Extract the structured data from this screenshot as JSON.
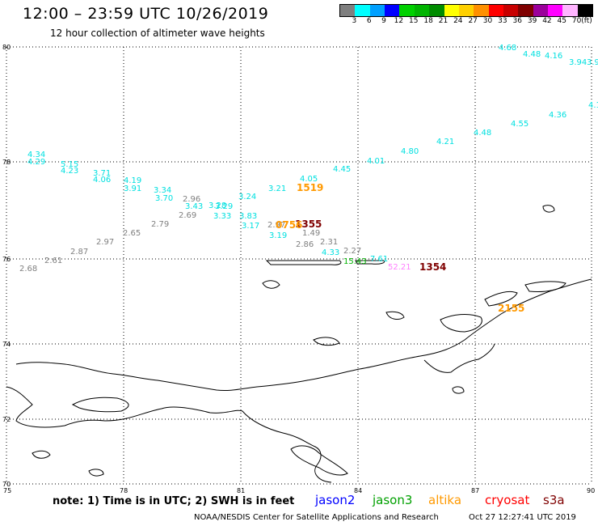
{
  "title": "12:00 – 23:59 UTC 10/26/2019",
  "subtitle": "12 hour collection of altimeter wave heights",
  "legend": {
    "colors": [
      "#7f7f7f",
      "#00ffff",
      "#00a0ff",
      "#0000ff",
      "#00d100",
      "#00b400",
      "#008c00",
      "#ffff00",
      "#ffd000",
      "#ff9000",
      "#ff0000",
      "#c80000",
      "#7f0000",
      "#9b009b",
      "#ff00ff",
      "#ffb4ff",
      "#000000"
    ],
    "labels": [
      "3",
      "6",
      "9",
      "12",
      "15",
      "18",
      "21",
      "24",
      "27",
      "30",
      "33",
      "36",
      "39",
      "42",
      "45",
      "70",
      "(ft)"
    ]
  },
  "axes": {
    "lat_labels": [
      "80",
      "78",
      "76",
      "74",
      "72",
      "70"
    ],
    "lon_labels": [
      "75",
      "78",
      "81",
      "84",
      "87",
      "90"
    ]
  },
  "observations": [
    {
      "text": "4.68",
      "color": "#00e0e0"
    },
    {
      "text": "4.48",
      "color": "#00e0e0"
    },
    {
      "text": "4.16",
      "color": "#00e0e0"
    },
    {
      "text": "3.94",
      "color": "#00e0e0"
    },
    {
      "text": "3.9",
      "color": "#00e0e0"
    },
    {
      "text": "4.36",
      "color": "#00e0e0"
    },
    {
      "text": "4.1",
      "color": "#00e0e0"
    },
    {
      "text": "4.55",
      "color": "#00e0e0"
    },
    {
      "text": "4.48",
      "color": "#00e0e0"
    },
    {
      "text": "4.21",
      "color": "#00e0e0"
    },
    {
      "text": "4.80",
      "color": "#00e0e0"
    },
    {
      "text": "4.01",
      "color": "#00e0e0"
    },
    {
      "text": "4.45",
      "color": "#00e0e0"
    },
    {
      "text": "4.05",
      "color": "#00e0e0"
    },
    {
      "text": "3.21",
      "color": "#00e0e0"
    },
    {
      "text": "3.24",
      "color": "#00e0e0"
    },
    {
      "text": "4.34",
      "color": "#00e0e0"
    },
    {
      "text": "4.29",
      "color": "#00e0e0"
    },
    {
      "text": "5.15",
      "color": "#00e0e0"
    },
    {
      "text": "4.23",
      "color": "#00e0e0"
    },
    {
      "text": "3.71",
      "color": "#00e0e0"
    },
    {
      "text": "4.06",
      "color": "#00e0e0"
    },
    {
      "text": "4.19",
      "color": "#00e0e0"
    },
    {
      "text": "3.91",
      "color": "#00e0e0"
    },
    {
      "text": "3.34",
      "color": "#00e0e0"
    },
    {
      "text": "3.70",
      "color": "#00e0e0"
    },
    {
      "text": "3.43",
      "color": "#00e0e0"
    },
    {
      "text": "3.28",
      "color": "#00e0e0"
    },
    {
      "text": "3.29",
      "color": "#00e0e0"
    },
    {
      "text": "3.33",
      "color": "#00e0e0"
    },
    {
      "text": "3.83",
      "color": "#00e0e0"
    },
    {
      "text": "3.17",
      "color": "#00e0e0"
    },
    {
      "text": "3.19",
      "color": "#00e0e0"
    },
    {
      "text": "4.33",
      "color": "#00e0e0"
    },
    {
      "text": "7.61",
      "color": "#00e0e0"
    },
    {
      "text": "2.96",
      "color": "#808080"
    },
    {
      "text": "2.69",
      "color": "#808080"
    },
    {
      "text": "2.79",
      "color": "#808080"
    },
    {
      "text": "2.65",
      "color": "#808080"
    },
    {
      "text": "2.97",
      "color": "#808080"
    },
    {
      "text": "2.87",
      "color": "#808080"
    },
    {
      "text": "2.61",
      "color": "#808080"
    },
    {
      "text": "2.68",
      "color": "#808080"
    },
    {
      "text": "2.97",
      "color": "#808080"
    },
    {
      "text": "1.49",
      "color": "#808080"
    },
    {
      "text": "2.86",
      "color": "#808080"
    },
    {
      "text": "2.31",
      "color": "#808080"
    },
    {
      "text": "2.27",
      "color": "#808080"
    },
    {
      "text": "15.43",
      "color": "#00b400"
    },
    {
      "text": "52.21",
      "color": "#ff80ff"
    }
  ],
  "time_labels": [
    {
      "text": "1519",
      "color": "#ff9900"
    },
    {
      "text": "1355",
      "color": "#7f0000"
    },
    {
      "text": "0756",
      "color": "#ff9900"
    },
    {
      "text": "1354",
      "color": "#7f0000"
    },
    {
      "text": "2155",
      "color": "#ff9900"
    }
  ],
  "note": "note: 1) Time is in UTC; 2) SWH is in feet",
  "satellites": [
    {
      "name": "jason2",
      "color": "#0000ff"
    },
    {
      "name": "jason3",
      "color": "#00a000"
    },
    {
      "name": "altika",
      "color": "#ff9900"
    },
    {
      "name": "cryosat",
      "color": "#ff0000"
    },
    {
      "name": "s3a",
      "color": "#7f0000"
    }
  ],
  "credit": "NOAA/NESDIS Center for Satellite Applications and Research",
  "timestamp": "Oct 27 12:27:41 UTC 2019"
}
